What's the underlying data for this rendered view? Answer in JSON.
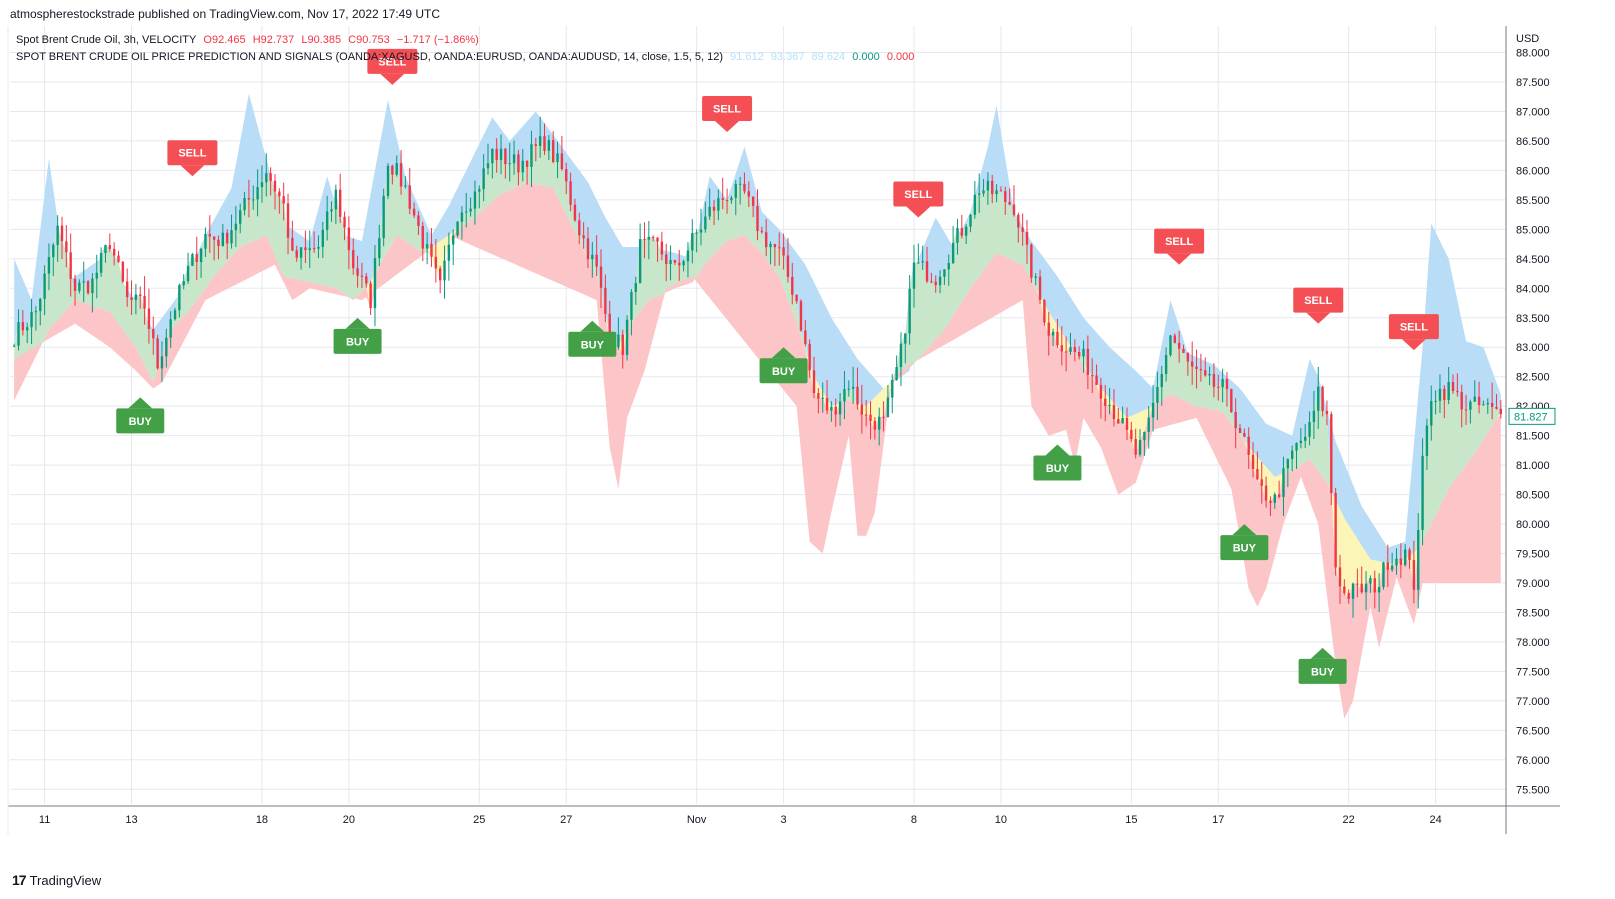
{
  "header": {
    "published": "atmospherestockstrade published on TradingView.com, Nov 17, 2022 17:49 UTC"
  },
  "legend": {
    "line1_title": "Spot Brent Crude Oil, 3h, VELOCITY",
    "line1_o": "O92.465",
    "line1_h": "H92.737",
    "line1_l": "L90.385",
    "line1_c": "C90.753",
    "line1_chg": "−1.717 (−1.86%)",
    "line2_title": "SPOT BRENT CRUDE OIL PRICE PREDICTION AND SIGNALS (OANDA:XAGUSD, OANDA:EURUSD, OANDA:AUDUSD, 14, close, 1.5, 5, 12)",
    "line2_v1": "91.612",
    "line2_v2": "93.367",
    "line2_v3": "89.624",
    "line2_v4": "0.000",
    "line2_v5": "0.000"
  },
  "colors": {
    "up": "#089981",
    "down": "#f23645",
    "band_blue": "#b9dcf7",
    "band_green": "#c8e6c9",
    "band_yellow": "#fbf5b7",
    "band_red": "#fcc5c7",
    "buy": "#43a047",
    "sell": "#f44f55",
    "grid": "#e6e8ee"
  },
  "footer": {
    "brand": "TradingView",
    "logo": "17"
  },
  "chart_data": {
    "type": "candlestick",
    "currency_label": "USD",
    "last_price": "81.827",
    "ylim": [
      75.25,
      88.45
    ],
    "y_ticks": [
      "88.000",
      "87.500",
      "87.000",
      "86.500",
      "86.000",
      "85.500",
      "85.000",
      "84.500",
      "84.000",
      "83.500",
      "83.000",
      "82.500",
      "82.000",
      "81.500",
      "81.000",
      "80.500",
      "80.000",
      "79.500",
      "79.000",
      "78.500",
      "78.000",
      "77.500",
      "77.000",
      "76.500",
      "76.000",
      "75.500"
    ],
    "x_ticks": [
      "11",
      "13",
      "18",
      "20",
      "25",
      "27",
      "Nov",
      "3",
      "8",
      "10",
      "15",
      "17",
      "22",
      "24"
    ],
    "x_tick_bars": [
      7,
      27,
      57,
      77,
      107,
      127,
      157,
      177,
      207,
      227,
      257,
      277,
      307,
      327
    ],
    "bar_count": 343,
    "price_path": [
      [
        0,
        83.2
      ],
      [
        5,
        83.6
      ],
      [
        10,
        85.0
      ],
      [
        14,
        84.0
      ],
      [
        18,
        84.1
      ],
      [
        22,
        84.8
      ],
      [
        26,
        83.8
      ],
      [
        30,
        83.7
      ],
      [
        33,
        82.7
      ],
      [
        36,
        83.5
      ],
      [
        40,
        84.3
      ],
      [
        44,
        84.9
      ],
      [
        48,
        84.8
      ],
      [
        54,
        85.5
      ],
      [
        58,
        86.0
      ],
      [
        62,
        85.4
      ],
      [
        64,
        84.5
      ],
      [
        70,
        84.7
      ],
      [
        74,
        85.6
      ],
      [
        78,
        84.4
      ],
      [
        82,
        83.8
      ],
      [
        86,
        86.2
      ],
      [
        90,
        85.7
      ],
      [
        94,
        84.8
      ],
      [
        98,
        84.0
      ],
      [
        102,
        85.3
      ],
      [
        106,
        85.6
      ],
      [
        110,
        86.3
      ],
      [
        116,
        86.1
      ],
      [
        122,
        86.5
      ],
      [
        126,
        86.0
      ],
      [
        130,
        85.0
      ],
      [
        134,
        84.3
      ],
      [
        137,
        83.2
      ],
      [
        140,
        83.0
      ],
      [
        142,
        83.8
      ],
      [
        144,
        84.7
      ],
      [
        148,
        84.7
      ],
      [
        152,
        84.3
      ],
      [
        156,
        84.8
      ],
      [
        160,
        85.3
      ],
      [
        164,
        85.6
      ],
      [
        168,
        85.6
      ],
      [
        172,
        84.9
      ],
      [
        176,
        84.6
      ],
      [
        180,
        83.8
      ],
      [
        184,
        82.2
      ],
      [
        188,
        81.9
      ],
      [
        192,
        82.4
      ],
      [
        196,
        81.8
      ],
      [
        200,
        81.7
      ],
      [
        204,
        82.9
      ],
      [
        207,
        84.4
      ],
      [
        212,
        84.2
      ],
      [
        218,
        85.0
      ],
      [
        222,
        85.7
      ],
      [
        226,
        85.6
      ],
      [
        230,
        85.4
      ],
      [
        234,
        84.3
      ],
      [
        238,
        83.3
      ],
      [
        242,
        83.0
      ],
      [
        246,
        82.8
      ],
      [
        250,
        82.3
      ],
      [
        254,
        81.8
      ],
      [
        258,
        81.2
      ],
      [
        260,
        81.4
      ],
      [
        264,
        82.6
      ],
      [
        266,
        83.2
      ],
      [
        270,
        82.7
      ],
      [
        274,
        82.4
      ],
      [
        278,
        82.3
      ],
      [
        282,
        81.6
      ],
      [
        286,
        80.6
      ],
      [
        290,
        80.4
      ],
      [
        294,
        81.2
      ],
      [
        298,
        81.6
      ],
      [
        300,
        82.2
      ],
      [
        302,
        81.8
      ],
      [
        304,
        79.3
      ],
      [
        306,
        78.8
      ],
      [
        310,
        78.9
      ],
      [
        314,
        79.0
      ],
      [
        316,
        79.4
      ],
      [
        320,
        79.5
      ],
      [
        322,
        79.0
      ],
      [
        324,
        81.0
      ],
      [
        326,
        82.2
      ],
      [
        330,
        82.3
      ],
      [
        334,
        82.0
      ],
      [
        338,
        82.0
      ],
      [
        342,
        81.83
      ]
    ],
    "band_upper": [
      [
        0,
        84.5
      ],
      [
        4,
        83.8
      ],
      [
        8,
        86.2
      ],
      [
        12,
        84.1
      ],
      [
        20,
        84.5
      ],
      [
        26,
        84.0
      ],
      [
        32,
        83.3
      ],
      [
        38,
        83.9
      ],
      [
        44,
        84.9
      ],
      [
        50,
        85.7
      ],
      [
        54,
        87.3
      ],
      [
        58,
        86.2
      ],
      [
        62,
        85.1
      ],
      [
        68,
        84.8
      ],
      [
        72,
        85.9
      ],
      [
        76,
        84.9
      ],
      [
        80,
        84.8
      ],
      [
        86,
        87.2
      ],
      [
        90,
        85.9
      ],
      [
        96,
        84.9
      ],
      [
        100,
        85.4
      ],
      [
        106,
        86.3
      ],
      [
        110,
        86.9
      ],
      [
        114,
        86.5
      ],
      [
        120,
        87.0
      ],
      [
        124,
        86.6
      ],
      [
        128,
        86.2
      ],
      [
        132,
        85.8
      ],
      [
        136,
        85.2
      ],
      [
        140,
        84.7
      ],
      [
        146,
        84.7
      ],
      [
        152,
        84.6
      ],
      [
        156,
        84.5
      ],
      [
        160,
        85.9
      ],
      [
        164,
        85.5
      ],
      [
        168,
        86.4
      ],
      [
        172,
        85.3
      ],
      [
        176,
        85.0
      ],
      [
        182,
        84.4
      ],
      [
        188,
        83.5
      ],
      [
        194,
        82.8
      ],
      [
        200,
        82.3
      ],
      [
        206,
        82.6
      ],
      [
        208,
        84.5
      ],
      [
        212,
        85.2
      ],
      [
        216,
        84.7
      ],
      [
        220,
        85.3
      ],
      [
        224,
        86.4
      ],
      [
        226,
        87.1
      ],
      [
        230,
        85.3
      ],
      [
        234,
        84.8
      ],
      [
        240,
        84.2
      ],
      [
        246,
        83.5
      ],
      [
        252,
        83.0
      ],
      [
        258,
        82.6
      ],
      [
        262,
        82.3
      ],
      [
        266,
        83.8
      ],
      [
        270,
        82.9
      ],
      [
        276,
        82.7
      ],
      [
        282,
        82.3
      ],
      [
        288,
        81.7
      ],
      [
        294,
        81.5
      ],
      [
        298,
        82.8
      ],
      [
        300,
        82.5
      ],
      [
        304,
        81.4
      ],
      [
        310,
        80.3
      ],
      [
        316,
        79.6
      ],
      [
        320,
        79.7
      ],
      [
        324,
        83.0
      ],
      [
        326,
        85.1
      ],
      [
        330,
        84.5
      ],
      [
        334,
        83.1
      ],
      [
        338,
        83.0
      ],
      [
        342,
        82.2
      ]
    ],
    "band_lower": [
      [
        0,
        82.1
      ],
      [
        8,
        83.3
      ],
      [
        14,
        83.8
      ],
      [
        22,
        83.6
      ],
      [
        28,
        83.0
      ],
      [
        32,
        82.4
      ],
      [
        36,
        83.3
      ],
      [
        40,
        83.6
      ],
      [
        46,
        84.2
      ],
      [
        52,
        84.7
      ],
      [
        58,
        84.9
      ],
      [
        62,
        84.2
      ],
      [
        68,
        84.1
      ],
      [
        74,
        84.0
      ],
      [
        78,
        83.8
      ],
      [
        82,
        84.1
      ],
      [
        88,
        84.9
      ],
      [
        94,
        84.6
      ],
      [
        100,
        84.9
      ],
      [
        106,
        85.2
      ],
      [
        112,
        85.6
      ],
      [
        118,
        85.8
      ],
      [
        124,
        85.7
      ],
      [
        130,
        84.8
      ],
      [
        134,
        84.2
      ],
      [
        138,
        82.9
      ],
      [
        142,
        83.4
      ],
      [
        146,
        83.8
      ],
      [
        152,
        84.0
      ],
      [
        156,
        84.1
      ],
      [
        160,
        84.5
      ],
      [
        164,
        84.8
      ],
      [
        168,
        84.9
      ],
      [
        172,
        84.6
      ],
      [
        176,
        84.2
      ],
      [
        180,
        83.4
      ],
      [
        184,
        82.5
      ],
      [
        188,
        82.0
      ],
      [
        192,
        82.1
      ],
      [
        196,
        82.0
      ],
      [
        200,
        82.3
      ],
      [
        204,
        82.5
      ],
      [
        208,
        82.8
      ],
      [
        214,
        83.3
      ],
      [
        220,
        84.0
      ],
      [
        226,
        84.6
      ],
      [
        232,
        84.4
      ],
      [
        238,
        83.6
      ],
      [
        244,
        82.9
      ],
      [
        250,
        82.3
      ],
      [
        256,
        81.8
      ],
      [
        262,
        82.0
      ],
      [
        266,
        82.2
      ],
      [
        272,
        82.0
      ],
      [
        278,
        81.9
      ],
      [
        284,
        81.3
      ],
      [
        290,
        80.8
      ],
      [
        294,
        80.9
      ],
      [
        298,
        81.1
      ],
      [
        302,
        80.7
      ],
      [
        306,
        80.1
      ],
      [
        312,
        79.4
      ],
      [
        318,
        79.3
      ],
      [
        322,
        79.5
      ],
      [
        324,
        79.7
      ],
      [
        330,
        80.6
      ],
      [
        336,
        81.2
      ],
      [
        342,
        81.9
      ]
    ],
    "band_low_extreme": [
      [
        0,
        82.8
      ],
      [
        14,
        83.4
      ],
      [
        22,
        83.0
      ],
      [
        28,
        82.6
      ],
      [
        32,
        82.3
      ],
      [
        34,
        82.4
      ],
      [
        44,
        83.8
      ],
      [
        60,
        84.4
      ],
      [
        64,
        83.8
      ],
      [
        68,
        84.0
      ],
      [
        74,
        83.9
      ],
      [
        80,
        83.8
      ],
      [
        82,
        83.9
      ],
      [
        100,
        84.9
      ],
      [
        134,
        83.8
      ],
      [
        137,
        81.3
      ],
      [
        139,
        80.6
      ],
      [
        141,
        81.8
      ],
      [
        145,
        82.6
      ],
      [
        150,
        84.0
      ],
      [
        156,
        84.2
      ],
      [
        180,
        82.0
      ],
      [
        183,
        79.7
      ],
      [
        186,
        79.5
      ],
      [
        188,
        80.2
      ],
      [
        192,
        81.5
      ],
      [
        194,
        79.8
      ],
      [
        196,
        79.8
      ],
      [
        198,
        80.2
      ],
      [
        202,
        82.5
      ],
      [
        206,
        82.7
      ],
      [
        232,
        83.8
      ],
      [
        234,
        82.0
      ],
      [
        238,
        81.5
      ],
      [
        242,
        81.6
      ],
      [
        244,
        81.0
      ],
      [
        246,
        81.8
      ],
      [
        250,
        81.3
      ],
      [
        254,
        80.5
      ],
      [
        258,
        80.7
      ],
      [
        262,
        81.6
      ],
      [
        272,
        81.8
      ],
      [
        280,
        80.6
      ],
      [
        284,
        78.9
      ],
      [
        286,
        78.6
      ],
      [
        288,
        78.9
      ],
      [
        292,
        80.0
      ],
      [
        296,
        80.8
      ],
      [
        300,
        80.0
      ],
      [
        304,
        77.6
      ],
      [
        306,
        76.7
      ],
      [
        308,
        77.0
      ],
      [
        312,
        78.6
      ],
      [
        314,
        77.9
      ],
      [
        318,
        79.1
      ],
      [
        322,
        78.3
      ],
      [
        324,
        79.0
      ]
    ],
    "signals": [
      {
        "type": "BUY",
        "bar": 29,
        "price": 81.75
      },
      {
        "type": "SELL",
        "bar": 41,
        "price": 86.3
      },
      {
        "type": "BUY",
        "bar": 79,
        "price": 83.1
      },
      {
        "type": "SELL",
        "bar": 87,
        "price": 87.85
      },
      {
        "type": "BUY",
        "bar": 133,
        "price": 83.05
      },
      {
        "type": "SELL",
        "bar": 164,
        "price": 87.05
      },
      {
        "type": "BUY",
        "bar": 177,
        "price": 82.6
      },
      {
        "type": "SELL",
        "bar": 208,
        "price": 85.6
      },
      {
        "type": "BUY",
        "bar": 240,
        "price": 80.95
      },
      {
        "type": "SELL",
        "bar": 268,
        "price": 84.8
      },
      {
        "type": "BUY",
        "bar": 283,
        "price": 79.6
      },
      {
        "type": "SELL",
        "bar": 300,
        "price": 83.8
      },
      {
        "type": "BUY",
        "bar": 301,
        "price": 77.5
      },
      {
        "type": "SELL",
        "bar": 322,
        "price": 83.35
      }
    ]
  }
}
